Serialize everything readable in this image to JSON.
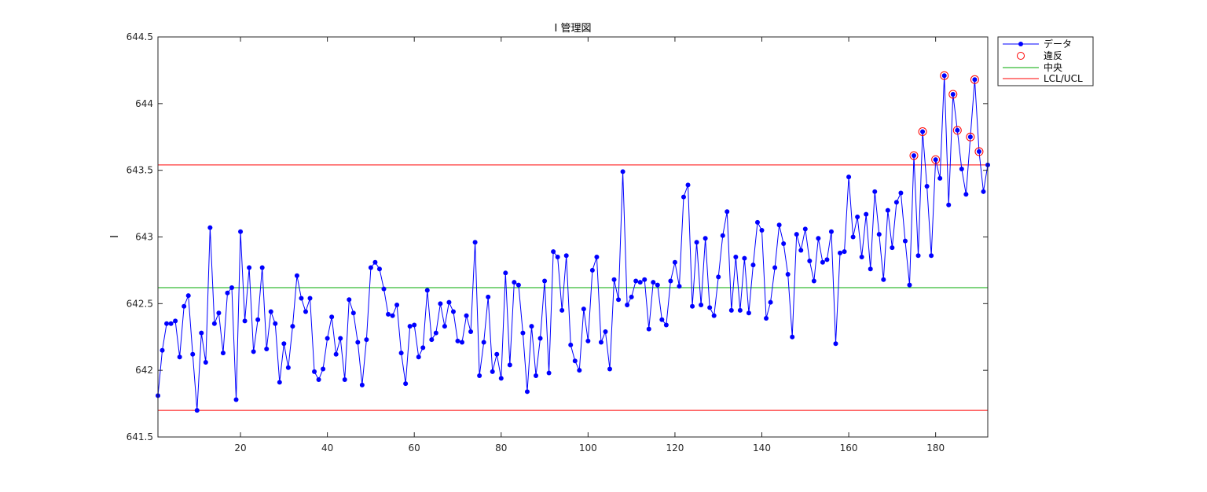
{
  "chart_data": {
    "type": "line",
    "title": "I 管理図",
    "xlabel": "",
    "ylabel": "I",
    "xlim": [
      1,
      192
    ],
    "ylim": [
      641.5,
      644.5
    ],
    "xticks": [
      "20",
      "40",
      "60",
      "80",
      "100",
      "120",
      "140",
      "160",
      "180"
    ],
    "yticks": [
      "641.5",
      "642",
      "642.5",
      "643",
      "643.5",
      "644",
      "644.5"
    ],
    "grid": false,
    "legend_position": "outside-top-right",
    "center": 642.62,
    "lcl": 641.7,
    "ucl": 643.54,
    "colors": {
      "data": "#0000ff",
      "violation": "#ff0000",
      "center": "#00aa00",
      "limits": "#ff0000"
    },
    "legend": [
      {
        "key": "data",
        "label": "データ"
      },
      {
        "key": "violation",
        "label": "違反"
      },
      {
        "key": "center",
        "label": "中央"
      },
      {
        "key": "limits",
        "label": "LCL/UCL"
      }
    ],
    "series": [
      {
        "name": "データ",
        "values": [
          641.81,
          642.15,
          642.35,
          642.35,
          642.37,
          642.1,
          642.48,
          642.56,
          642.12,
          641.7,
          642.28,
          642.06,
          643.07,
          642.35,
          642.43,
          642.13,
          642.58,
          642.62,
          641.78,
          643.04,
          642.37,
          642.77,
          642.14,
          642.38,
          642.77,
          642.16,
          642.44,
          642.35,
          641.91,
          642.2,
          642.02,
          642.33,
          642.71,
          642.54,
          642.44,
          642.54,
          641.99,
          641.93,
          642.01,
          642.24,
          642.4,
          642.12,
          642.24,
          641.93,
          642.53,
          642.43,
          642.21,
          641.89,
          642.23,
          642.77,
          642.81,
          642.76,
          642.61,
          642.42,
          642.41,
          642.49,
          642.13,
          641.9,
          642.33,
          642.34,
          642.1,
          642.17,
          642.6,
          642.23,
          642.28,
          642.5,
          642.33,
          642.51,
          642.44,
          642.22,
          642.21,
          642.41,
          642.29,
          642.96,
          641.96,
          642.21,
          642.55,
          641.99,
          642.12,
          641.94,
          642.73,
          642.04,
          642.66,
          642.64,
          642.28,
          641.84,
          642.33,
          641.96,
          642.24,
          642.67,
          641.98,
          642.89,
          642.85,
          642.45,
          642.86,
          642.19,
          642.07,
          642.0,
          642.46,
          642.22,
          642.75,
          642.85,
          642.21,
          642.29,
          642.01,
          642.68,
          642.53,
          643.49,
          642.49,
          642.55,
          642.67,
          642.66,
          642.68,
          642.31,
          642.66,
          642.64,
          642.38,
          642.34,
          642.67,
          642.81,
          642.63,
          643.3,
          643.39,
          642.48,
          642.96,
          642.49,
          642.99,
          642.47,
          642.41,
          642.7,
          643.01,
          643.19,
          642.45,
          642.85,
          642.45,
          642.84,
          642.43,
          642.79,
          643.11,
          643.05,
          642.39,
          642.51,
          642.77,
          643.09,
          642.95,
          642.72,
          642.25,
          643.02,
          642.9,
          643.06,
          642.82,
          642.67,
          642.99,
          642.81,
          642.83,
          643.04,
          642.2,
          642.88,
          642.89,
          643.45,
          643.0,
          643.15,
          642.85,
          643.17,
          642.76,
          643.34,
          643.02,
          642.68,
          643.2,
          642.92,
          643.26,
          643.33,
          642.97,
          642.64,
          643.61,
          642.86,
          643.79,
          643.38,
          642.86,
          643.58,
          643.44,
          644.21,
          643.24,
          644.07,
          643.8,
          643.51,
          643.32,
          643.75,
          644.18,
          643.64,
          643.34,
          643.54
        ]
      }
    ],
    "violations_x": [
      175,
      177,
      180,
      182,
      184,
      185,
      188,
      189,
      190
    ]
  }
}
